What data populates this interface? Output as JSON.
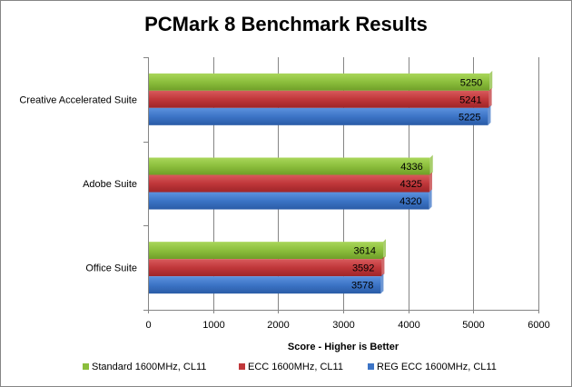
{
  "chart_data": {
    "type": "bar",
    "orientation": "horizontal",
    "title": "PCMark 8 Benchmark Results",
    "xlabel": "Score - Higher is Better",
    "ylabel": "",
    "categories": [
      "Creative Accelerated Suite",
      "Adobe Suite",
      "Office Suite"
    ],
    "series": [
      {
        "name": "Standard 1600MHz, CL11",
        "color": "#8BBE3C",
        "values": [
          5250,
          4336,
          3614
        ]
      },
      {
        "name": "ECC 1600MHz, CL11",
        "color": "#C0373A",
        "values": [
          5241,
          4325,
          3592
        ]
      },
      {
        "name": "REG ECC 1600MHz, CL11",
        "color": "#3C74C6",
        "values": [
          5225,
          4320,
          3578
        ]
      }
    ],
    "xlim": [
      0,
      6000
    ],
    "xticks": [
      0,
      1000,
      2000,
      3000,
      4000,
      5000,
      6000
    ],
    "grid": "vertical",
    "legend": "bottom",
    "data_labels": true
  }
}
